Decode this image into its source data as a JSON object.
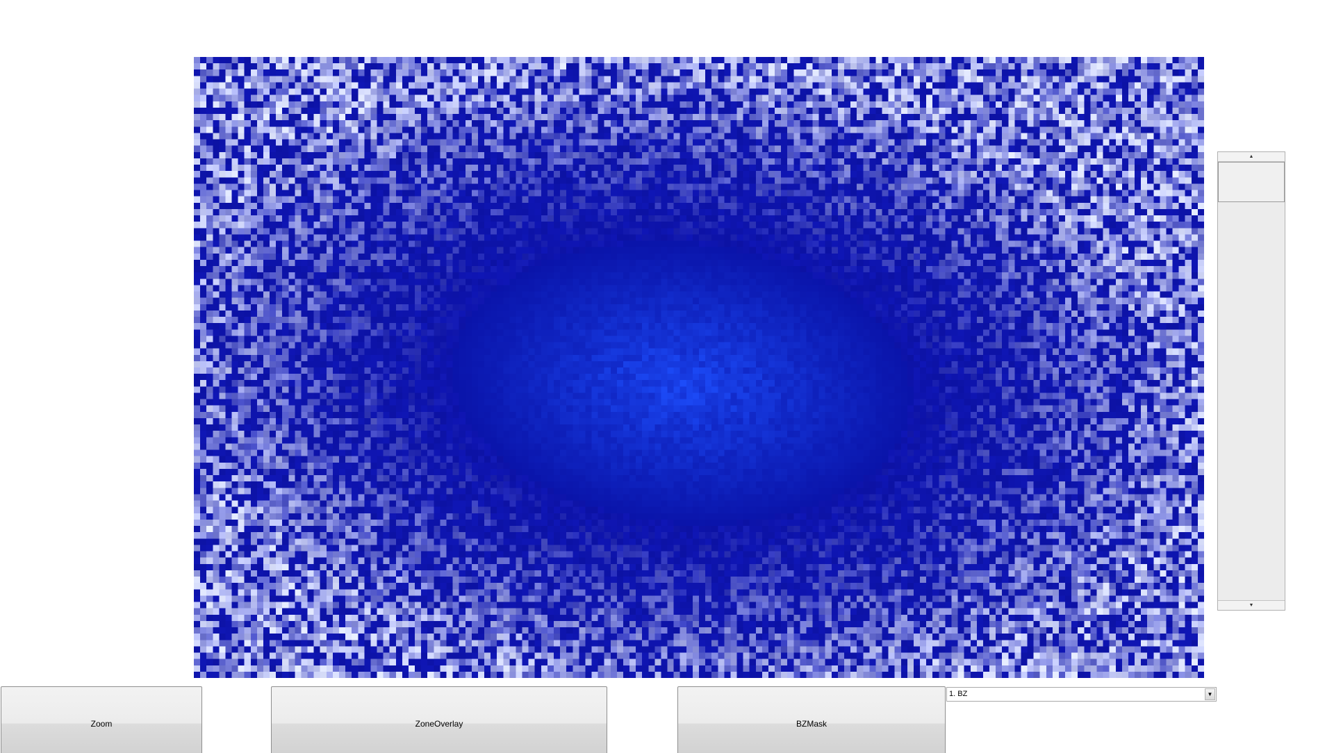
{
  "toolbar": {
    "zoom_label": "Zoom",
    "zone_overlay_label": "ZoneOverlay",
    "bzmask_label": "BZMask"
  },
  "selector": {
    "selected_value": "1. BZ",
    "arrow_icon": "dropdown-arrow-icon"
  },
  "scrollbar": {
    "up_icon": "scroll-up-arrow-icon",
    "down_icon": "scroll-down-arrow-icon",
    "up_glyph": "▲",
    "down_glyph": "▼"
  },
  "heatmap": {
    "colors": {
      "low": "#e8eaf6",
      "mid": "#0a14a0",
      "high": "#1a3cff"
    }
  }
}
